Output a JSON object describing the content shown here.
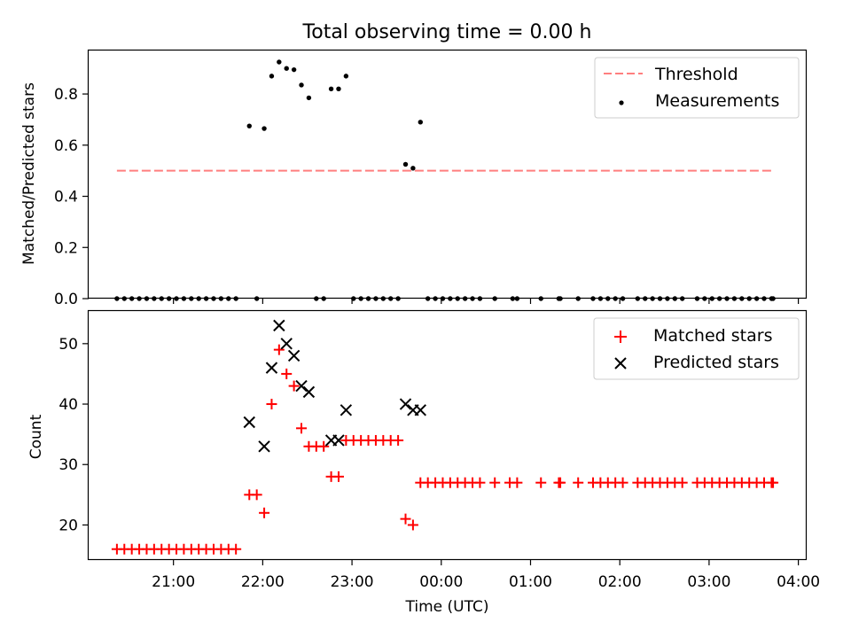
{
  "figure_title": "Total observing time = 0.00 h",
  "colors": {
    "threshold": "#ff7f7f",
    "measurement": "#000000",
    "matched": "#ff0000",
    "predicted": "#000000"
  },
  "chart_data": [
    {
      "type": "scatter",
      "title": "Total observing time = 0.00 h",
      "xlabel": "",
      "ylabel": "Matched/Predicted stars",
      "xlim": [
        "20:03",
        "04:05"
      ],
      "ylim": [
        0,
        0.97
      ],
      "yticks": [
        "0.0",
        "0.2",
        "0.4",
        "0.6",
        "0.8"
      ],
      "legend": {
        "position": "top-right",
        "entries": [
          "Threshold",
          "Measurements"
        ]
      },
      "threshold": {
        "name": "Threshold",
        "y": 0.5,
        "x_start": "20:22",
        "x_end": "03:43",
        "style": "dashed"
      },
      "series": [
        {
          "name": "Measurements",
          "points": [
            [
              "20:22",
              0
            ],
            [
              "20:27",
              0
            ],
            [
              "20:32",
              0
            ],
            [
              "20:37",
              0
            ],
            [
              "20:42",
              0
            ],
            [
              "20:47",
              0
            ],
            [
              "20:52",
              0
            ],
            [
              "20:57",
              0
            ],
            [
              "21:02",
              0
            ],
            [
              "21:07",
              0
            ],
            [
              "21:12",
              0
            ],
            [
              "21:17",
              0
            ],
            [
              "21:22",
              0
            ],
            [
              "21:27",
              0
            ],
            [
              "21:32",
              0
            ],
            [
              "21:37",
              0
            ],
            [
              "21:42",
              0
            ],
            [
              "21:51",
              0.675
            ],
            [
              "21:56",
              0
            ],
            [
              "22:01",
              0.665
            ],
            [
              "22:06",
              0.87
            ],
            [
              "22:11",
              0.925
            ],
            [
              "22:16",
              0.9
            ],
            [
              "22:21",
              0.895
            ],
            [
              "22:26",
              0.835
            ],
            [
              "22:31",
              0.785
            ],
            [
              "22:36",
              0
            ],
            [
              "22:41",
              0
            ],
            [
              "22:46",
              0.82
            ],
            [
              "22:51",
              0.82
            ],
            [
              "22:56",
              0.87
            ],
            [
              "23:01",
              0
            ],
            [
              "23:06",
              0
            ],
            [
              "23:11",
              0
            ],
            [
              "23:16",
              0
            ],
            [
              "23:21",
              0
            ],
            [
              "23:26",
              0
            ],
            [
              "23:31",
              0
            ],
            [
              "23:36",
              0.525
            ],
            [
              "23:41",
              0.51
            ],
            [
              "23:46",
              0.69
            ],
            [
              "23:51",
              0
            ],
            [
              "23:56",
              0
            ],
            [
              "00:01",
              0
            ],
            [
              "00:06",
              0
            ],
            [
              "00:11",
              0
            ],
            [
              "00:16",
              0
            ],
            [
              "00:21",
              0
            ],
            [
              "00:26",
              0
            ],
            [
              "00:36",
              0
            ],
            [
              "00:48",
              0
            ],
            [
              "00:51",
              0
            ],
            [
              "01:07",
              0
            ],
            [
              "01:19",
              0
            ],
            [
              "01:20",
              0
            ],
            [
              "01:32",
              0
            ],
            [
              "01:42",
              0
            ],
            [
              "01:47",
              0
            ],
            [
              "01:52",
              0
            ],
            [
              "01:57",
              0
            ],
            [
              "02:02",
              0
            ],
            [
              "02:12",
              0
            ],
            [
              "02:17",
              0
            ],
            [
              "02:22",
              0
            ],
            [
              "02:27",
              0
            ],
            [
              "02:32",
              0
            ],
            [
              "02:37",
              0
            ],
            [
              "02:42",
              0
            ],
            [
              "02:52",
              0
            ],
            [
              "02:57",
              0
            ],
            [
              "03:02",
              0
            ],
            [
              "03:07",
              0
            ],
            [
              "03:12",
              0
            ],
            [
              "03:17",
              0
            ],
            [
              "03:22",
              0
            ],
            [
              "03:27",
              0
            ],
            [
              "03:32",
              0
            ],
            [
              "03:37",
              0
            ],
            [
              "03:42",
              0
            ],
            [
              "03:43",
              0
            ]
          ]
        }
      ]
    },
    {
      "type": "scatter",
      "title": "",
      "xlabel": "Time (UTC)",
      "ylabel": "Count",
      "xlim": [
        "20:03",
        "04:05"
      ],
      "ylim": [
        14.2,
        55.4
      ],
      "yticks": [
        "20",
        "30",
        "40",
        "50"
      ],
      "xticks": [
        "21:00",
        "22:00",
        "23:00",
        "00:00",
        "01:00",
        "02:00",
        "03:00",
        "04:00"
      ],
      "legend": {
        "position": "top-right",
        "entries": [
          "Matched stars",
          "Predicted stars"
        ]
      },
      "series": [
        {
          "name": "Matched stars",
          "points": [
            [
              "20:22",
              16
            ],
            [
              "20:27",
              16
            ],
            [
              "20:32",
              16
            ],
            [
              "20:37",
              16
            ],
            [
              "20:42",
              16
            ],
            [
              "20:47",
              16
            ],
            [
              "20:52",
              16
            ],
            [
              "20:57",
              16
            ],
            [
              "21:02",
              16
            ],
            [
              "21:07",
              16
            ],
            [
              "21:12",
              16
            ],
            [
              "21:17",
              16
            ],
            [
              "21:22",
              16
            ],
            [
              "21:27",
              16
            ],
            [
              "21:32",
              16
            ],
            [
              "21:37",
              16
            ],
            [
              "21:42",
              16
            ],
            [
              "21:51",
              25
            ],
            [
              "21:56",
              25
            ],
            [
              "22:01",
              22
            ],
            [
              "22:06",
              40
            ],
            [
              "22:11",
              49
            ],
            [
              "22:16",
              45
            ],
            [
              "22:21",
              43
            ],
            [
              "22:26",
              36
            ],
            [
              "22:31",
              33
            ],
            [
              "22:36",
              33
            ],
            [
              "22:41",
              33
            ],
            [
              "22:46",
              28
            ],
            [
              "22:51",
              28
            ],
            [
              "22:56",
              34
            ],
            [
              "23:01",
              34
            ],
            [
              "23:06",
              34
            ],
            [
              "23:11",
              34
            ],
            [
              "23:16",
              34
            ],
            [
              "23:21",
              34
            ],
            [
              "23:26",
              34
            ],
            [
              "23:31",
              34
            ],
            [
              "23:36",
              21
            ],
            [
              "23:41",
              20
            ],
            [
              "23:46",
              27
            ],
            [
              "23:51",
              27
            ],
            [
              "23:56",
              27
            ],
            [
              "00:01",
              27
            ],
            [
              "00:06",
              27
            ],
            [
              "00:11",
              27
            ],
            [
              "00:16",
              27
            ],
            [
              "00:21",
              27
            ],
            [
              "00:26",
              27
            ],
            [
              "00:36",
              27
            ],
            [
              "00:46",
              27
            ],
            [
              "00:51",
              27
            ],
            [
              "01:07",
              27
            ],
            [
              "01:19",
              27
            ],
            [
              "01:20",
              27
            ],
            [
              "01:32",
              27
            ],
            [
              "01:42",
              27
            ],
            [
              "01:47",
              27
            ],
            [
              "01:52",
              27
            ],
            [
              "01:57",
              27
            ],
            [
              "02:02",
              27
            ],
            [
              "02:12",
              27
            ],
            [
              "02:17",
              27
            ],
            [
              "02:22",
              27
            ],
            [
              "02:27",
              27
            ],
            [
              "02:32",
              27
            ],
            [
              "02:37",
              27
            ],
            [
              "02:42",
              27
            ],
            [
              "02:52",
              27
            ],
            [
              "02:57",
              27
            ],
            [
              "03:02",
              27
            ],
            [
              "03:07",
              27
            ],
            [
              "03:12",
              27
            ],
            [
              "03:17",
              27
            ],
            [
              "03:22",
              27
            ],
            [
              "03:27",
              27
            ],
            [
              "03:32",
              27
            ],
            [
              "03:37",
              27
            ],
            [
              "03:42",
              27
            ],
            [
              "03:43",
              27
            ]
          ]
        },
        {
          "name": "Predicted stars",
          "points": [
            [
              "21:51",
              37
            ],
            [
              "22:01",
              33
            ],
            [
              "22:06",
              46
            ],
            [
              "22:11",
              53
            ],
            [
              "22:16",
              50
            ],
            [
              "22:21",
              48
            ],
            [
              "22:26",
              43
            ],
            [
              "22:31",
              42
            ],
            [
              "22:46",
              34
            ],
            [
              "22:51",
              34
            ],
            [
              "22:56",
              39
            ],
            [
              "23:36",
              40
            ],
            [
              "23:41",
              39
            ],
            [
              "23:46",
              39
            ]
          ]
        }
      ]
    }
  ]
}
